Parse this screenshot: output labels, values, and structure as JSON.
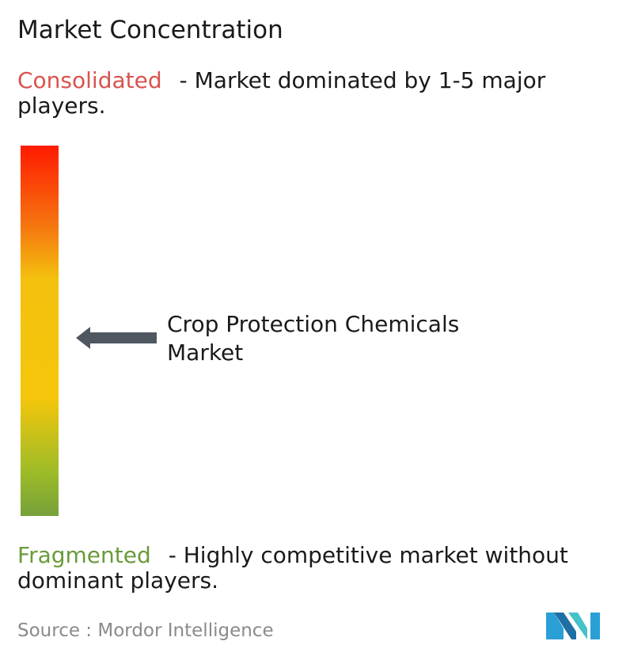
{
  "title": "Market Concentration",
  "consolidated": {
    "term": "Consolidated",
    "description": "- Market dominated by 1-5 major players.",
    "color": "#d9534f"
  },
  "fragmented": {
    "term": "Fragmented",
    "description": "- Highly competitive market without dominant players.",
    "color": "#6a9a3a"
  },
  "market": {
    "label": "Crop Protection Chemicals Market",
    "concentration_level": 0.5
  },
  "scale": {
    "top_color": "#ff1a00",
    "bottom_color": "#76a03a"
  },
  "source": {
    "text": "Source : Mordor Intelligence"
  },
  "logo": {
    "icon": "mordor-intelligence-logo",
    "colors": [
      "#2a9fd6",
      "#1d6fa5",
      "#45c1c9"
    ]
  }
}
